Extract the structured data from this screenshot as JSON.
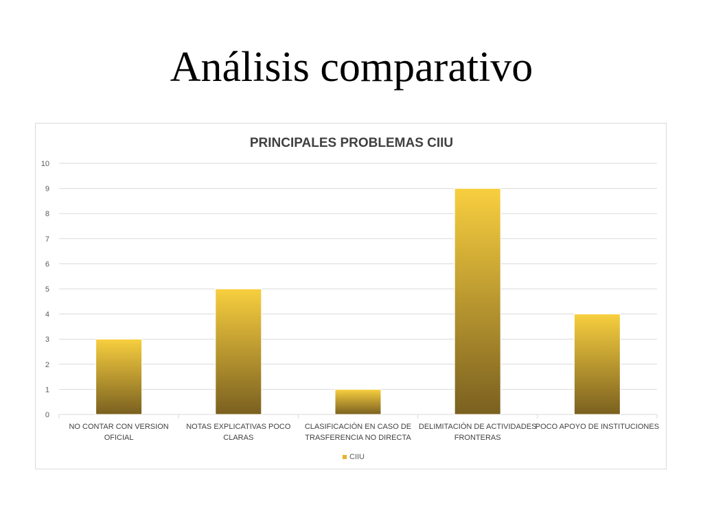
{
  "slide": {
    "title": "Análisis comparativo"
  },
  "colors": {
    "bar_top": "#f8cf3f",
    "bar_bottom": "#7a6020",
    "grid": "#d9d9d9",
    "legend_marker": "#e3b32a"
  },
  "chart_data": {
    "type": "bar",
    "title": "PRINCIPALES PROBLEMAS CIIU",
    "xlabel": "",
    "ylabel": "",
    "ylim": [
      0,
      10
    ],
    "yticks": [
      0,
      1,
      2,
      3,
      4,
      5,
      6,
      7,
      8,
      9,
      10
    ],
    "grid": true,
    "legend_position": "bottom",
    "categories": [
      [
        "NO CONTAR CON VERSION",
        "OFICIAL"
      ],
      [
        "NOTAS EXPLICATIVAS POCO",
        "CLARAS"
      ],
      [
        "CLASIFICACIÓN EN CASO DE",
        "TRASFERENCIA NO DIRECTA"
      ],
      [
        "DELIMITACIÓN DE ACTIVIDADES",
        "FRONTERAS"
      ],
      [
        "POCO APOYO DE INSTITUCIONES"
      ]
    ],
    "series": [
      {
        "name": "CIIU",
        "values": [
          3,
          5,
          1,
          9,
          4
        ]
      }
    ]
  }
}
